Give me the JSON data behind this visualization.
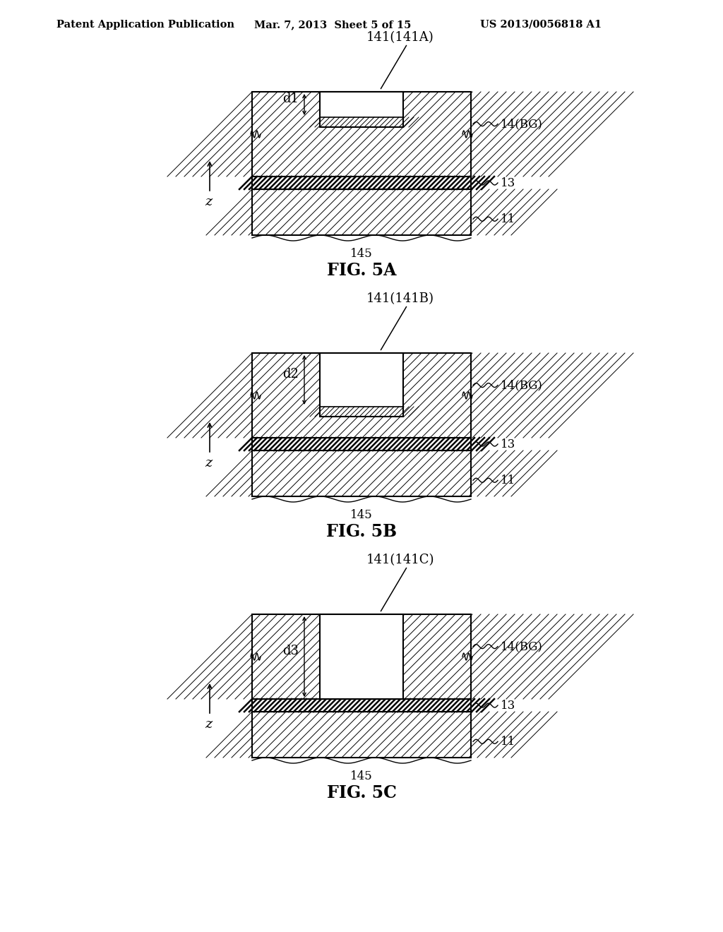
{
  "background_color": "#ffffff",
  "header_left": "Patent Application Publication",
  "header_center": "Mar. 7, 2013  Sheet 5 of 15",
  "header_right": "US 2013/0056818 A1",
  "figures": [
    {
      "name": "FIG. 5A",
      "label_top": "141(141A)",
      "label_d": "d1",
      "depth_ratio": 0.42
    },
    {
      "name": "FIG. 5B",
      "label_top": "141(141B)",
      "label_d": "d2",
      "depth_ratio": 0.75
    },
    {
      "name": "FIG. 5C",
      "label_top": "141(141C)",
      "label_d": "d3",
      "depth_ratio": 1.0
    }
  ]
}
